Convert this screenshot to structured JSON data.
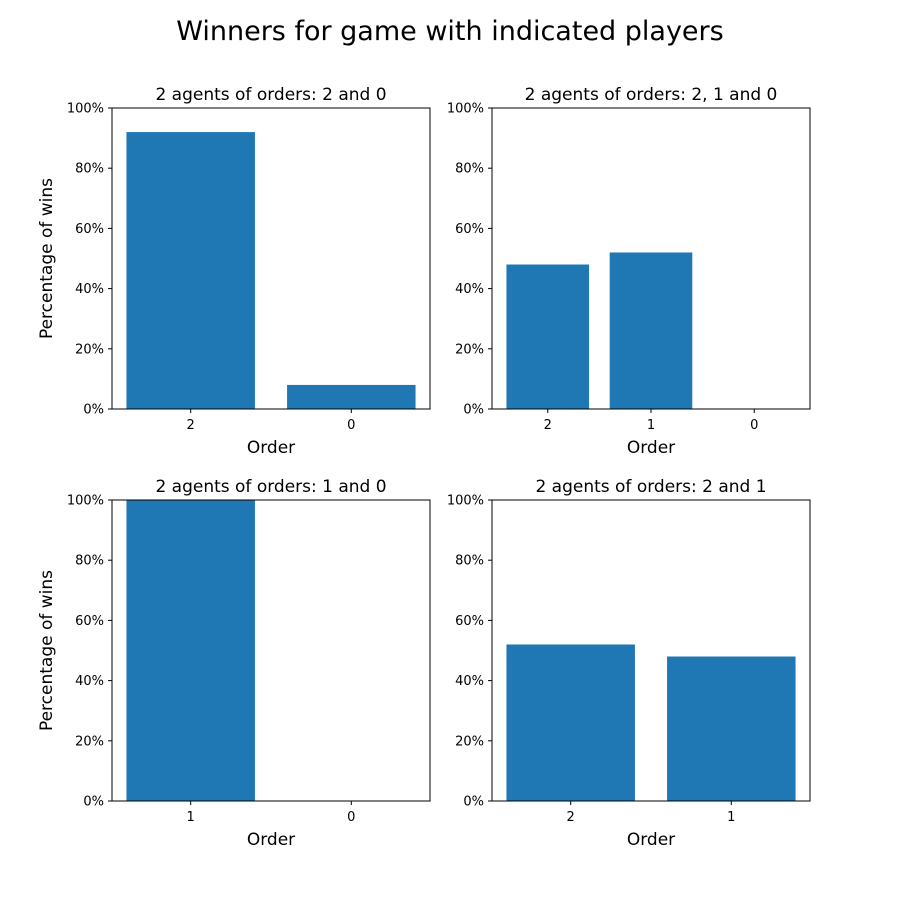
{
  "figure": {
    "title": "Winners for game with indicated players"
  },
  "chart_data": [
    {
      "type": "bar",
      "title": "2 agents of orders: 2 and 0",
      "xlabel": "Order",
      "ylabel": "Percentage of wins",
      "categories": [
        "2",
        "0"
      ],
      "values": [
        92,
        8
      ],
      "ylim": [
        0,
        100
      ],
      "yticks": [
        "0%",
        "20%",
        "40%",
        "60%",
        "80%",
        "100%"
      ],
      "color": "#1f77b4",
      "grid": false
    },
    {
      "type": "bar",
      "title": "2 agents of orders: 2, 1 and 0",
      "xlabel": "Order",
      "ylabel": "",
      "categories": [
        "2",
        "1",
        "0"
      ],
      "values": [
        48,
        52,
        0
      ],
      "ylim": [
        0,
        100
      ],
      "yticks": [
        "0%",
        "20%",
        "40%",
        "60%",
        "80%",
        "100%"
      ],
      "color": "#1f77b4",
      "grid": false
    },
    {
      "type": "bar",
      "title": "2 agents of orders: 1 and 0",
      "xlabel": "Order",
      "ylabel": "Percentage of wins",
      "categories": [
        "1",
        "0"
      ],
      "values": [
        100,
        0
      ],
      "ylim": [
        0,
        100
      ],
      "yticks": [
        "0%",
        "20%",
        "40%",
        "60%",
        "80%",
        "100%"
      ],
      "color": "#1f77b4",
      "grid": false
    },
    {
      "type": "bar",
      "title": "2 agents of orders: 2 and 1",
      "xlabel": "Order",
      "ylabel": "",
      "categories": [
        "2",
        "1"
      ],
      "values": [
        52,
        48
      ],
      "ylim": [
        0,
        100
      ],
      "yticks": [
        "0%",
        "20%",
        "40%",
        "60%",
        "80%",
        "100%"
      ],
      "color": "#1f77b4",
      "grid": false
    }
  ]
}
